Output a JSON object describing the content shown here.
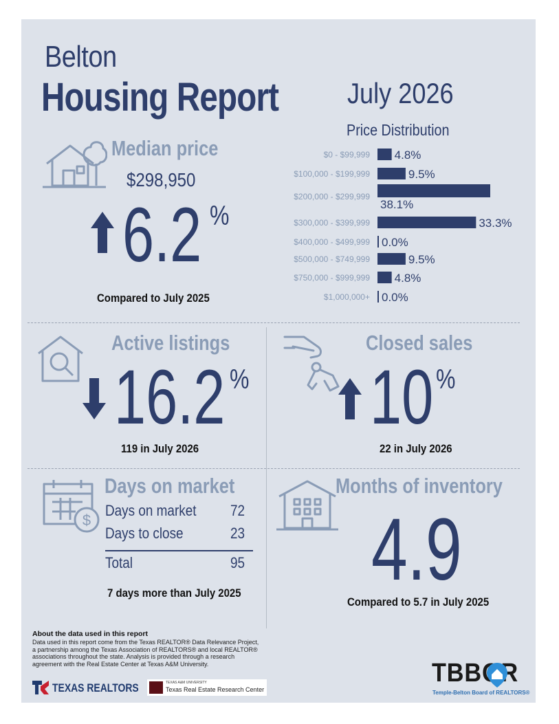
{
  "header": {
    "city": "Belton",
    "title": "Housing Report",
    "month": "July 2026"
  },
  "median_price": {
    "title": "Median price",
    "price": "$298,950",
    "change": "6.2",
    "unit": "%",
    "direction": "up",
    "caption": "Compared to July 2025"
  },
  "price_distribution": {
    "title": "Price Distribution",
    "chart_data": {
      "type": "bar",
      "orientation": "horizontal",
      "categories": [
        "$0 - $99,999",
        "$100,000 - $199,999",
        "$200,000 - $299,999",
        "$300,000 - $399,999",
        "$400,000 - $499,999",
        "$500,000 - $749,999",
        "$750,000 - $999,999",
        "$1,000,000+"
      ],
      "values": [
        4.8,
        9.5,
        38.1,
        33.3,
        0.0,
        9.5,
        4.8,
        0.0
      ],
      "value_labels": [
        "4.8%",
        "9.5%",
        "38.1%",
        "33.3%",
        "0.0%",
        "9.5%",
        "4.8%",
        "0.0%"
      ]
    }
  },
  "active_listings": {
    "title": "Active listings",
    "change": "16.2",
    "unit": "%",
    "direction": "down",
    "caption": "119 in July 2026"
  },
  "closed_sales": {
    "title": "Closed sales",
    "change": "10",
    "unit": "%",
    "direction": "up",
    "caption": "22 in July 2026"
  },
  "days_on_market": {
    "title": "Days on market",
    "rows": [
      {
        "label": "Days on market",
        "value": "72"
      },
      {
        "label": "Days to close",
        "value": "23"
      }
    ],
    "total_label": "Total",
    "total_value": "95",
    "caption": "7 days more than July 2025"
  },
  "months_inventory": {
    "title": "Months of inventory",
    "value": "4.9",
    "caption": "Compared to 5.7 in July 2025"
  },
  "footer": {
    "about_title": "About the data used in this report",
    "about_text": "Data used in this report come from the Texas REALTOR® Data Relevance Project, a partnership among the Texas Association of REALTORS® and local REALTOR® associations throughout the state. Analysis is provided through a research agreement with the Real Estate Center at Texas A&M University.",
    "texas_realtors": "TEXAS REALTORS",
    "tamu_small": "TEXAS A&M UNIVERSITY",
    "tamu_center": "Texas Real Estate Research Center",
    "tbbor_logo": "TBBOR",
    "tbbor_name": "Temple-Belton Board of REALTORS®"
  },
  "colors": {
    "navy": "#2e3e6b",
    "slate": "#8a9cb6",
    "panel": "#dde2ea",
    "blue_accent": "#2f8fd8",
    "red_accent": "#c8202f"
  },
  "icons": [
    "house-tree-icon",
    "arrow-up-icon",
    "house-magnifier-icon",
    "arrow-down-icon",
    "hand-keys-icon",
    "calendar-dollar-icon",
    "building-icon"
  ]
}
